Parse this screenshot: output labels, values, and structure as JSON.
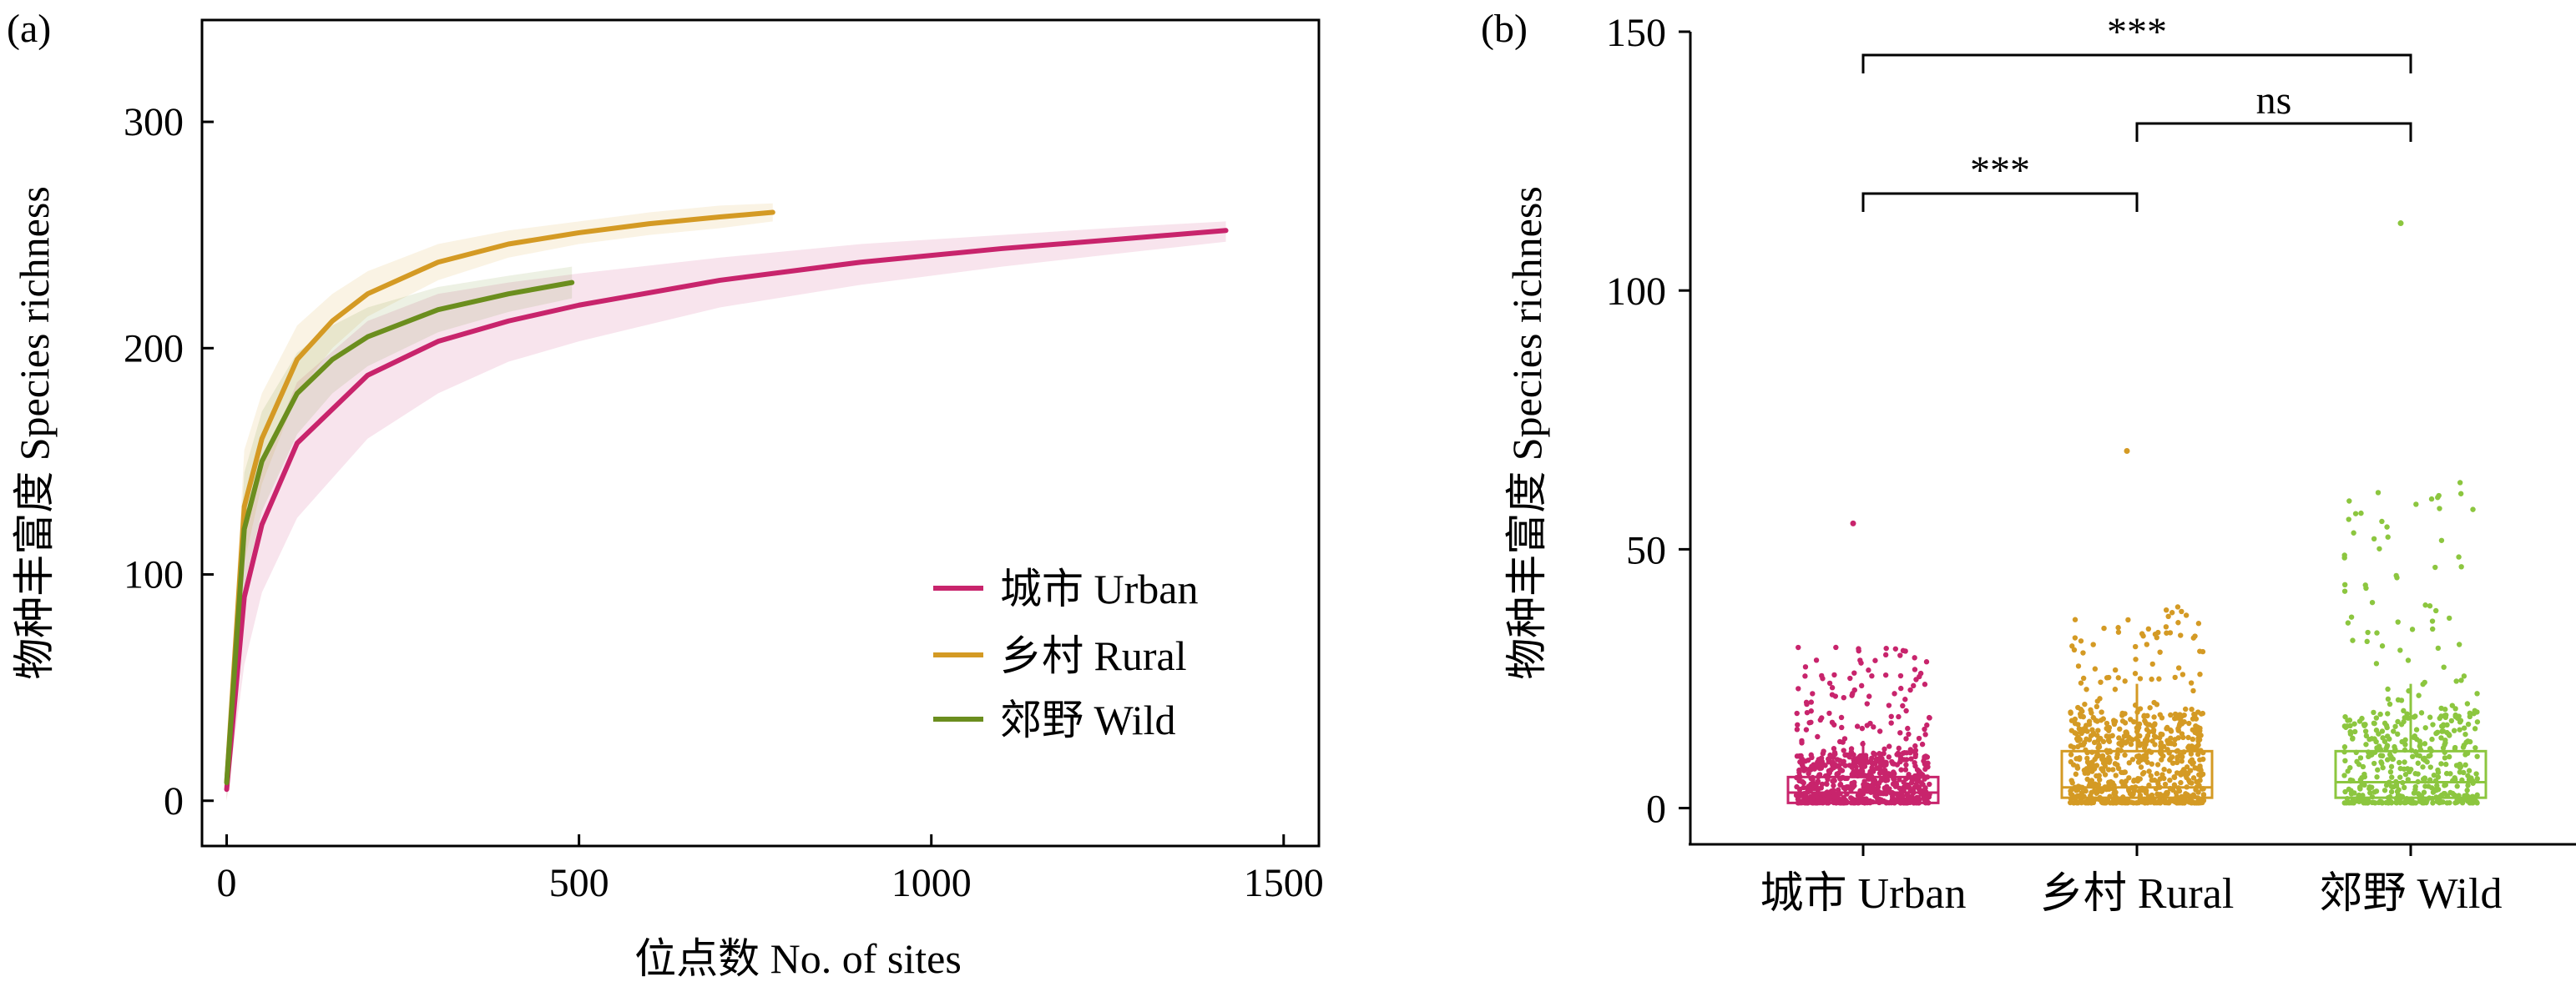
{
  "panel_a": {
    "label": "(a)",
    "xlabel": "位点数  No. of sites",
    "ylabel": "物种丰富度 Species richness",
    "xticks": [
      "0",
      "500",
      "1000",
      "1500"
    ],
    "yticks": [
      "0",
      "100",
      "200",
      "300"
    ],
    "legend": [
      "城市 Urban",
      "乡村 Rural",
      "郊野 Wild"
    ]
  },
  "panel_b": {
    "label": "(b)",
    "ylabel": "物种丰富度 Species richness",
    "xticks": [
      "城市 Urban",
      "乡村 Rural",
      "郊野 Wild"
    ],
    "yticks": [
      "0",
      "50",
      "100",
      "150"
    ],
    "significance": [
      "***",
      "ns",
      "***"
    ]
  },
  "colors": {
    "urban": "#c8246c",
    "rural": "#d49a24",
    "wild": "#6b8e1e",
    "wild_points": "#8cc63f"
  },
  "chart_data": [
    {
      "type": "line",
      "panel": "(a)",
      "xlabel": "位点数  No. of sites",
      "ylabel": "物种丰富度 Species richness",
      "xlim": [
        -35,
        1550
      ],
      "ylim": [
        -20,
        345
      ],
      "legend_position": "bottom-right",
      "series": [
        {
          "name": "城市 Urban",
          "x": [
            0,
            25,
            50,
            100,
            200,
            300,
            400,
            500,
            700,
            900,
            1100,
            1300,
            1418
          ],
          "y": [
            5,
            90,
            122,
            158,
            188,
            203,
            212,
            219,
            230,
            238,
            244,
            249,
            252
          ],
          "band": [
            [
              0,
              10
            ],
            [
              60,
              115
            ],
            [
              92,
              148
            ],
            [
              125,
              185
            ],
            [
              160,
              212
            ],
            [
              180,
              224
            ],
            [
              194,
              229
            ],
            [
              203,
              233
            ],
            [
              218,
              240
            ],
            [
              228,
              246
            ],
            [
              236,
              250
            ],
            [
              243,
              254
            ],
            [
              247,
              256
            ]
          ]
        },
        {
          "name": "乡村 Rural",
          "x": [
            0,
            25,
            50,
            100,
            150,
            200,
            300,
            400,
            500,
            600,
            700,
            775
          ],
          "y": [
            8,
            130,
            160,
            195,
            212,
            224,
            238,
            246,
            251,
            255,
            258,
            260
          ],
          "band": [
            [
              0,
              18
            ],
            [
              105,
              155
            ],
            [
              140,
              180
            ],
            [
              180,
              210
            ],
            [
              200,
              224
            ],
            [
              214,
              234
            ],
            [
              230,
              246
            ],
            [
              240,
              252
            ],
            [
              246,
              256
            ],
            [
              250,
              260
            ],
            [
              253,
              263
            ],
            [
              256,
              264
            ]
          ]
        },
        {
          "name": "郊野 Wild",
          "x": [
            0,
            25,
            50,
            100,
            150,
            200,
            300,
            400,
            490
          ],
          "y": [
            8,
            120,
            150,
            180,
            195,
            205,
            217,
            224,
            229
          ],
          "band": [
            [
              0,
              16
            ],
            [
              95,
              145
            ],
            [
              128,
              172
            ],
            [
              162,
              198
            ],
            [
              180,
              210
            ],
            [
              192,
              218
            ],
            [
              207,
              227
            ],
            [
              216,
              232
            ],
            [
              222,
              236
            ]
          ]
        }
      ]
    },
    {
      "type": "box",
      "panel": "(b)",
      "ylabel": "物种丰富度 Species richness",
      "ylim": [
        -7,
        150
      ],
      "categories": [
        "城市 Urban",
        "乡村 Rural",
        "郊野 Wild"
      ],
      "boxes": [
        {
          "name": "城市 Urban",
          "whisker_low": 1,
          "q1": 1,
          "median": 3,
          "q3": 6,
          "whisker_high": 13,
          "max_point": 55,
          "n_points": 1418
        },
        {
          "name": "乡村 Rural",
          "whisker_low": 1,
          "q1": 2,
          "median": 4,
          "q3": 11,
          "whisker_high": 24,
          "max_point": 69,
          "n_points": 775
        },
        {
          "name": "郊野 Wild",
          "whisker_low": 1,
          "q1": 2,
          "median": 5,
          "q3": 11,
          "whisker_high": 24,
          "max_point": 113,
          "n_points": 490
        }
      ],
      "comparisons": [
        {
          "groups": [
            "城市 Urban",
            "乡村 Rural"
          ],
          "label": "***"
        },
        {
          "groups": [
            "乡村 Rural",
            "郊野 Wild"
          ],
          "label": "ns"
        },
        {
          "groups": [
            "城市 Urban",
            "郊野 Wild"
          ],
          "label": "***"
        }
      ]
    }
  ]
}
